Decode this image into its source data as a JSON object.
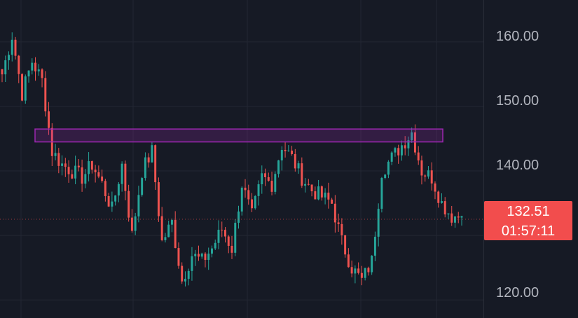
{
  "chart_data": {
    "type": "candlestick",
    "y_ticks": [
      "160.00",
      "150.00",
      "140.00",
      "120.00"
    ],
    "y_tick_values": [
      160,
      150,
      140,
      120
    ],
    "ylim": [
      117.2,
      166.5
    ],
    "last_price": "132.51",
    "countdown": "01:57:11",
    "grid": true,
    "resistance_zone": {
      "low": 144.5,
      "high": 146.5,
      "color": "#9c27b0"
    },
    "up_color": "#26a69a",
    "down_color": "#ef5350",
    "key_closes": [
      155,
      161,
      152,
      157,
      154,
      143,
      141,
      140,
      139,
      141,
      138,
      134,
      141,
      130,
      140,
      143,
      129,
      132,
      123,
      127,
      126,
      128,
      131,
      128,
      138,
      133,
      139,
      138,
      144,
      142,
      139,
      137,
      136,
      135,
      129,
      125,
      123,
      126,
      140,
      142,
      144,
      146,
      140,
      139,
      135,
      133,
      133
    ]
  }
}
